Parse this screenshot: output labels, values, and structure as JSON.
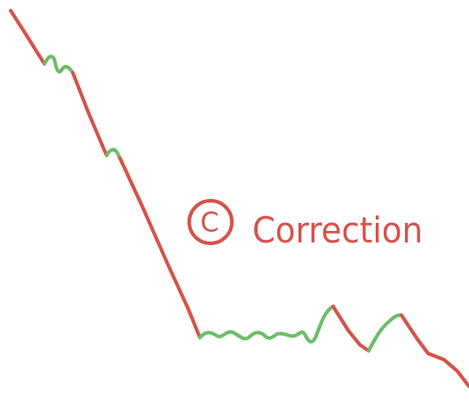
{
  "annotation": {
    "marker": "C",
    "label": "Correction"
  }
}
